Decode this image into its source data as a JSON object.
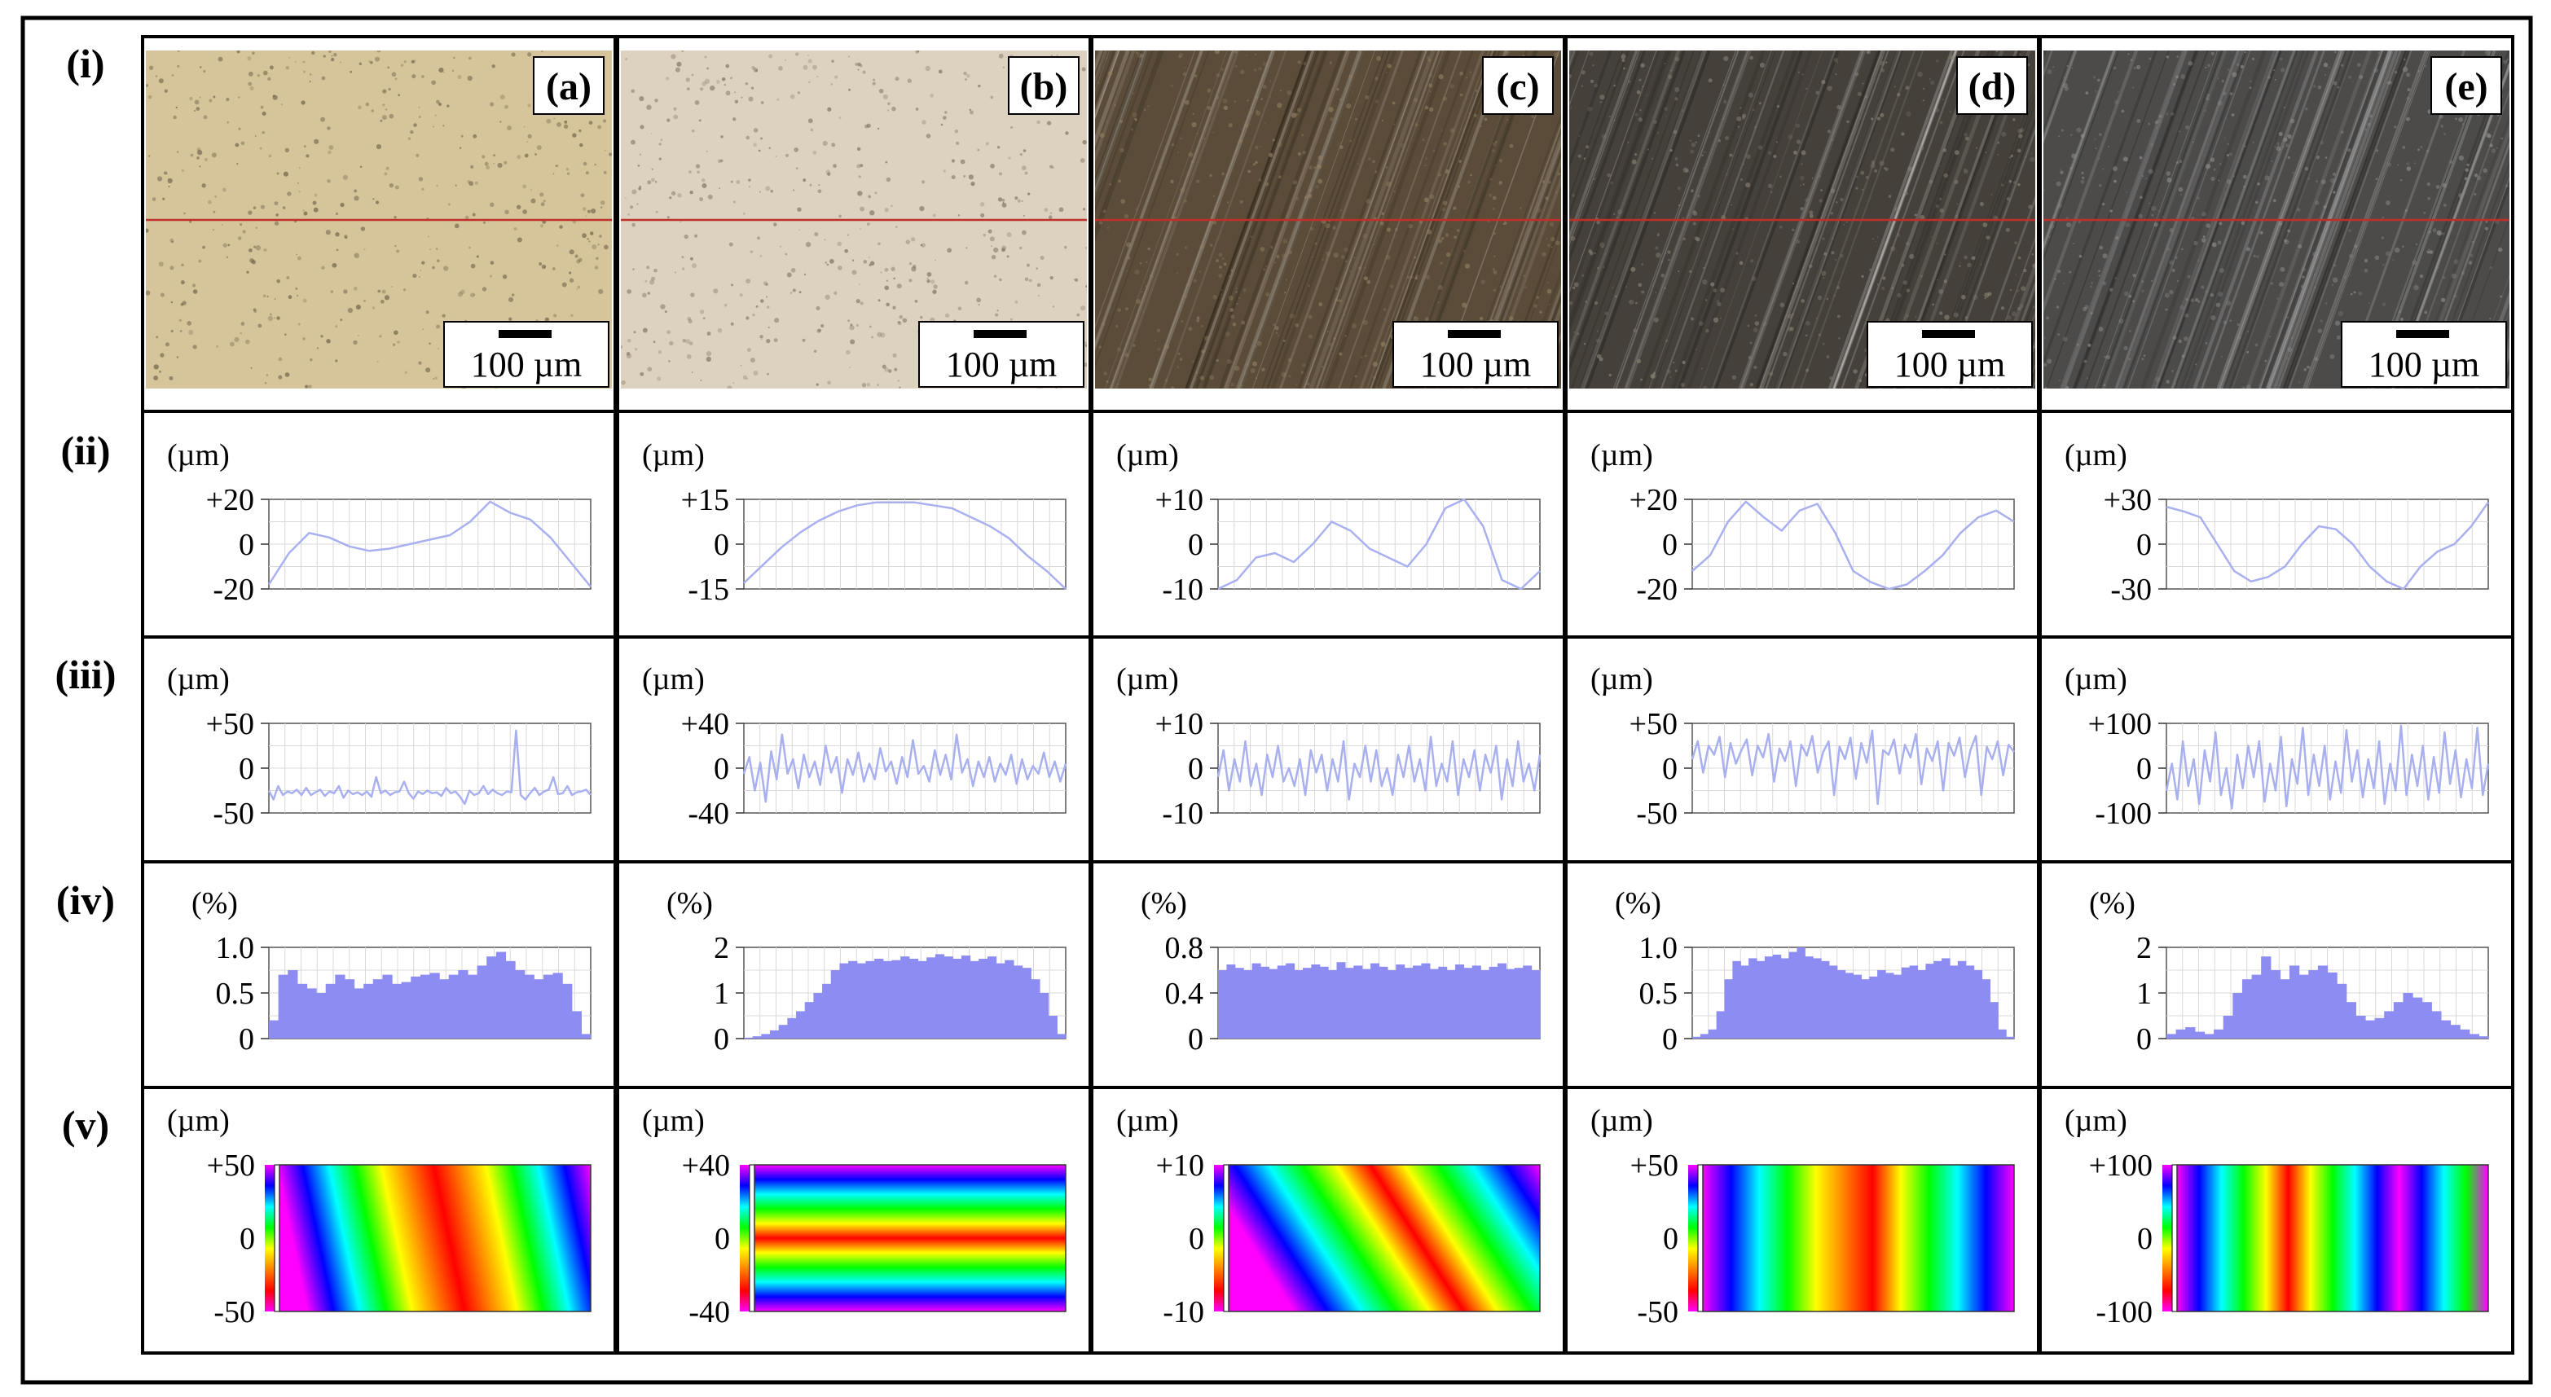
{
  "figure": {
    "row_labels": [
      "(i)",
      "(ii)",
      "(iii)",
      "(iv)",
      "(v)"
    ],
    "panel_labels": [
      "(a)",
      "(b)",
      "(c)",
      "(d)",
      "(e)"
    ],
    "scale_bar_label": "100 µm",
    "unit_um": "(µm)",
    "unit_pct": "(%)"
  },
  "chart_data": {
    "type": "line",
    "panels": [
      {
        "id": "a",
        "micrograph": {
          "bg": "#d6c49a",
          "speck": "#6e6148",
          "streaks": false
        },
        "profile": {
          "ticks": [
            "+20",
            "0",
            "-20"
          ],
          "ylim": [
            -20,
            20
          ],
          "values": [
            -18,
            -4,
            5,
            3,
            -1,
            -3,
            -2,
            0,
            2,
            4,
            10,
            19,
            14,
            11,
            3,
            -8,
            -19
          ]
        },
        "roughness": {
          "ticks": [
            "+50",
            "0",
            "-50"
          ],
          "ylim": [
            -50,
            50
          ],
          "values": [
            -25,
            -35,
            -20,
            -30,
            -26,
            -28,
            -24,
            -30,
            -22,
            -30,
            -27,
            -24,
            -31,
            -26,
            -28,
            -20,
            -33,
            -25,
            -29,
            -27,
            -30,
            -26,
            -32,
            -10,
            -28,
            -25,
            -30,
            -27,
            -26,
            -15,
            -28,
            -34,
            -26,
            -29,
            -25,
            -28,
            -27,
            -31,
            -22,
            -28,
            -26,
            -32,
            -40,
            -25,
            -30,
            -28,
            -20,
            -29,
            -24,
            -28,
            -30,
            -26,
            -27,
            42,
            -30,
            -35,
            -28,
            -22,
            -30,
            -26,
            -24,
            -10,
            -29,
            -28,
            -20,
            -30,
            -27,
            -26,
            -24,
            -30
          ]
        },
        "histogram": {
          "ticks": [
            "1.0",
            "0.5",
            "0"
          ],
          "ylim": [
            0,
            1.0
          ],
          "values": [
            0.2,
            0.7,
            0.75,
            0.6,
            0.55,
            0.5,
            0.6,
            0.7,
            0.65,
            0.55,
            0.6,
            0.65,
            0.7,
            0.6,
            0.62,
            0.68,
            0.7,
            0.72,
            0.65,
            0.7,
            0.75,
            0.7,
            0.8,
            0.9,
            0.95,
            0.85,
            0.75,
            0.7,
            0.65,
            0.7,
            0.72,
            0.6,
            0.3,
            0.05
          ]
        },
        "map": {
          "ticks": [
            "+50",
            "0",
            "-50"
          ],
          "pattern": "diagonal"
        }
      },
      {
        "id": "b",
        "micrograph": {
          "bg": "#dcd2bf",
          "speck": "#7c6f5c",
          "streaks": false
        },
        "profile": {
          "ticks": [
            "+15",
            "0",
            "-15"
          ],
          "ylim": [
            -15,
            15
          ],
          "values": [
            -13,
            -7,
            -1,
            4,
            8,
            11,
            13,
            14,
            14,
            14,
            13,
            12,
            9,
            6,
            2,
            -4,
            -9,
            -15
          ]
        },
        "roughness": {
          "ticks": [
            "+40",
            "0",
            "-40"
          ],
          "ylim": [
            -40,
            40
          ],
          "values": [
            -5,
            10,
            -20,
            5,
            -30,
            15,
            -10,
            30,
            -5,
            8,
            -18,
            12,
            -8,
            6,
            -15,
            20,
            -4,
            10,
            -22,
            8,
            -6,
            14,
            -12,
            4,
            -10,
            18,
            -3,
            6,
            -14,
            10,
            -8,
            25,
            -5,
            2,
            -12,
            16,
            -6,
            12,
            -10,
            30,
            -4,
            8,
            -16,
            6,
            -8,
            10,
            -12,
            4,
            -6,
            12,
            -14,
            8,
            -10,
            2,
            -5,
            14,
            -8,
            6,
            -12,
            4
          ]
        },
        "histogram": {
          "ticks": [
            "2",
            "1",
            "0"
          ],
          "ylim": [
            0,
            2
          ],
          "values": [
            0.02,
            0.05,
            0.1,
            0.18,
            0.3,
            0.45,
            0.6,
            0.8,
            1.0,
            1.2,
            1.5,
            1.65,
            1.7,
            1.65,
            1.7,
            1.75,
            1.7,
            1.72,
            1.8,
            1.75,
            1.7,
            1.78,
            1.85,
            1.8,
            1.75,
            1.82,
            1.7,
            1.75,
            1.8,
            1.65,
            1.72,
            1.6,
            1.55,
            1.3,
            1.0,
            0.5,
            0.1
          ]
        },
        "map": {
          "ticks": [
            "+40",
            "0",
            "-40"
          ],
          "pattern": "lens"
        }
      },
      {
        "id": "c",
        "micrograph": {
          "bg": "#5a4c38",
          "speck": "#8f7e62",
          "streaks": true
        },
        "profile": {
          "ticks": [
            "+10",
            "0",
            "-10"
          ],
          "ylim": [
            -10,
            10
          ],
          "values": [
            -10,
            -8,
            -3,
            -2,
            -4,
            0,
            5,
            3,
            -1,
            -3,
            -5,
            0,
            8,
            10,
            4,
            -8,
            -10,
            -6
          ]
        },
        "roughness": {
          "ticks": [
            "+10",
            "0",
            "-10"
          ],
          "ylim": [
            -10,
            10
          ],
          "values": [
            -2,
            4,
            -5,
            2,
            -3,
            6,
            -4,
            1,
            -6,
            3,
            -2,
            5,
            -3,
            0,
            -4,
            2,
            -6,
            4,
            -1,
            3,
            -5,
            2,
            -3,
            6,
            -7,
            1,
            -2,
            5,
            -3,
            4,
            -4,
            0,
            -6,
            3,
            -2,
            5,
            -3,
            2,
            -5,
            7,
            -4,
            1,
            -3,
            6,
            -6,
            2,
            -2,
            4,
            -5,
            3,
            -1,
            5,
            -7,
            2,
            -4,
            6,
            -3,
            1,
            -5,
            3
          ]
        },
        "histogram": {
          "ticks": [
            "0.8",
            "0.4",
            "0"
          ],
          "ylim": [
            0,
            0.8
          ],
          "values": [
            0.6,
            0.65,
            0.62,
            0.6,
            0.66,
            0.63,
            0.61,
            0.64,
            0.66,
            0.6,
            0.62,
            0.65,
            0.63,
            0.6,
            0.67,
            0.62,
            0.64,
            0.61,
            0.66,
            0.63,
            0.6,
            0.65,
            0.62,
            0.64,
            0.66,
            0.61,
            0.63,
            0.6,
            0.65,
            0.62,
            0.64,
            0.6,
            0.63,
            0.66,
            0.61,
            0.62,
            0.64,
            0.6
          ]
        },
        "map": {
          "ticks": [
            "+10",
            "0",
            "-10"
          ],
          "pattern": "steep"
        }
      },
      {
        "id": "d",
        "micrograph": {
          "bg": "#45403a",
          "speck": "#8a8274",
          "streaks": true
        },
        "profile": {
          "ticks": [
            "+20",
            "0",
            "-20"
          ],
          "ylim": [
            -20,
            20
          ],
          "values": [
            -12,
            -5,
            10,
            19,
            12,
            6,
            15,
            18,
            5,
            -12,
            -17,
            -20,
            -18,
            -12,
            -5,
            5,
            12,
            15,
            10
          ]
        },
        "roughness": {
          "ticks": [
            "+50",
            "0",
            "-50"
          ],
          "ylim": [
            -50,
            50
          ],
          "values": [
            10,
            30,
            -5,
            25,
            15,
            35,
            -10,
            28,
            5,
            20,
            32,
            -8,
            25,
            12,
            38,
            -15,
            22,
            8,
            30,
            -20,
            26,
            14,
            36,
            -5,
            18,
            30,
            -30,
            24,
            10,
            34,
            -12,
            28,
            6,
            42,
            -40,
            20,
            15,
            32,
            -6,
            26,
            12,
            38,
            -18,
            22,
            8,
            30,
            -25,
            28,
            14,
            34,
            -10,
            20,
            36,
            -30,
            24,
            10,
            30,
            -8,
            26,
            18
          ]
        },
        "histogram": {
          "ticks": [
            "1.0",
            "0.5",
            "0"
          ],
          "ylim": [
            0,
            1.0
          ],
          "values": [
            0.02,
            0.05,
            0.1,
            0.3,
            0.65,
            0.85,
            0.8,
            0.88,
            0.85,
            0.9,
            0.92,
            0.88,
            0.95,
            1.0,
            0.9,
            0.88,
            0.85,
            0.8,
            0.75,
            0.72,
            0.7,
            0.65,
            0.68,
            0.75,
            0.72,
            0.7,
            0.78,
            0.8,
            0.75,
            0.82,
            0.85,
            0.88,
            0.8,
            0.85,
            0.8,
            0.75,
            0.65,
            0.4,
            0.1,
            0.02
          ]
        },
        "map": {
          "ticks": [
            "+50",
            "0",
            "-50"
          ],
          "pattern": "vertical"
        }
      },
      {
        "id": "e",
        "micrograph": {
          "bg": "#4c4b4a",
          "speck": "#8c8b88",
          "streaks": true
        },
        "profile": {
          "ticks": [
            "+30",
            "0",
            "-30"
          ],
          "ylim": [
            -30,
            30
          ],
          "values": [
            25,
            22,
            18,
            0,
            -18,
            -25,
            -22,
            -15,
            0,
            12,
            10,
            0,
            -15,
            -25,
            -30,
            -15,
            -5,
            0,
            12,
            28
          ]
        },
        "roughness": {
          "ticks": [
            "+100",
            "0",
            "-100"
          ],
          "ylim": [
            -100,
            100
          ],
          "values": [
            -50,
            10,
            -70,
            60,
            -40,
            20,
            -80,
            40,
            -30,
            80,
            -60,
            0,
            -90,
            30,
            -45,
            50,
            -20,
            60,
            -75,
            10,
            -50,
            70,
            -85,
            20,
            -35,
            90,
            -60,
            30,
            -40,
            50,
            -70,
            15,
            -55,
            85,
            -30,
            40,
            -65,
            20,
            -45,
            60,
            -80,
            10,
            -50,
            95,
            -60,
            30,
            -40,
            50,
            -70,
            25,
            -55,
            80,
            -35,
            40,
            -65,
            20,
            -45,
            90,
            -60,
            10
          ]
        },
        "histogram": {
          "ticks": [
            "2",
            "1",
            "0"
          ],
          "ylim": [
            0,
            2
          ],
          "values": [
            0.1,
            0.2,
            0.25,
            0.15,
            0.1,
            0.2,
            0.5,
            1.0,
            1.3,
            1.4,
            1.8,
            1.5,
            1.3,
            1.6,
            1.4,
            1.5,
            1.6,
            1.45,
            1.2,
            0.8,
            0.5,
            0.4,
            0.45,
            0.6,
            0.8,
            1.0,
            0.9,
            0.8,
            0.6,
            0.4,
            0.3,
            0.2,
            0.1,
            0.05
          ]
        },
        "map": {
          "ticks": [
            "+100",
            "0",
            "-100"
          ],
          "pattern": "vertical-fine"
        }
      }
    ],
    "colors": {
      "profile_line": "#a9b0f0",
      "roughness_line": "#a9b0f0",
      "histogram_fill": "#8c8cf2",
      "grid": "#d9d9d9",
      "scan_line": "#c0302a"
    }
  }
}
